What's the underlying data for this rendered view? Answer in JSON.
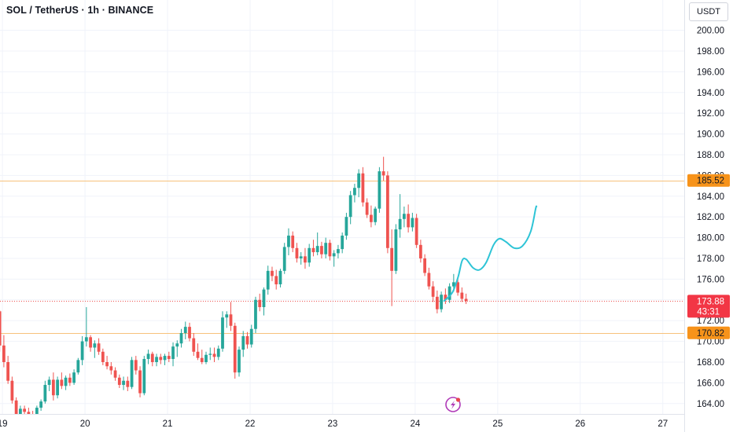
{
  "header": {
    "symbol_title": "SOL / TetherUS · 1h · BINANCE",
    "currency": "USDT"
  },
  "colors": {
    "up": "#26a69a",
    "down": "#ef5350",
    "projection": "#2ec4d6",
    "level_line": "#f7c27b",
    "level_label_bg": "#f7931a",
    "price_label_bg": "#f23645",
    "grid": "#f0f3fa"
  },
  "chart_data": {
    "type": "candlestick",
    "x_ticks": [
      {
        "label": "19",
        "day": 19
      },
      {
        "label": "20",
        "day": 20
      },
      {
        "label": "21",
        "day": 21
      },
      {
        "label": "22",
        "day": 22
      },
      {
        "label": "23",
        "day": 23
      },
      {
        "label": "24",
        "day": 24
      },
      {
        "label": "25",
        "day": 25
      },
      {
        "label": "26",
        "day": 26
      },
      {
        "label": "27",
        "day": 27
      }
    ],
    "y_ticks": [
      "164.00",
      "166.00",
      "168.00",
      "170.00",
      "172.00",
      "174.00",
      "176.00",
      "178.00",
      "180.00",
      "182.00",
      "184.00",
      "186.00",
      "188.00",
      "190.00",
      "192.00",
      "194.00",
      "196.00",
      "198.00",
      "200.00"
    ],
    "ylim": [
      163,
      200.8
    ],
    "xlim_days": [
      18.97,
      27.26
    ],
    "levels": [
      {
        "label": "185.52",
        "value": 185.52
      },
      {
        "label": "170.82",
        "value": 170.82
      }
    ],
    "current_price": {
      "label": "173.88",
      "value": 173.88,
      "countdown": "43:31"
    },
    "candle_spacing_hours": 1.2,
    "candles": [
      [
        174.6,
        174.6,
        172.5,
        172.9
      ],
      [
        172.9,
        173.0,
        169.0,
        169.6
      ],
      [
        169.6,
        170.6,
        167.5,
        168.0
      ],
      [
        168.0,
        168.6,
        165.9,
        166.2
      ],
      [
        166.2,
        166.6,
        164.0,
        164.3
      ],
      [
        164.3,
        164.6,
        162.6,
        163.0
      ],
      [
        163.0,
        163.8,
        162.5,
        163.5
      ],
      [
        163.5,
        163.8,
        162.8,
        163.2
      ],
      [
        163.2,
        163.6,
        162.5,
        163.0
      ],
      [
        163.0,
        163.3,
        162.4,
        162.7
      ],
      [
        162.7,
        163.8,
        162.5,
        163.6
      ],
      [
        163.6,
        164.4,
        163.3,
        164.2
      ],
      [
        164.2,
        166.2,
        164.0,
        165.8
      ],
      [
        165.8,
        166.6,
        165.2,
        166.3
      ],
      [
        166.3,
        167.0,
        164.3,
        164.8
      ],
      [
        164.8,
        166.6,
        164.5,
        166.3
      ],
      [
        166.3,
        167.0,
        165.4,
        165.7
      ],
      [
        165.7,
        166.7,
        165.3,
        166.5
      ],
      [
        166.5,
        166.9,
        165.7,
        166.0
      ],
      [
        166.0,
        167.3,
        165.8,
        167.0
      ],
      [
        167.0,
        168.4,
        166.8,
        168.2
      ],
      [
        168.2,
        170.5,
        167.7,
        170.0
      ],
      [
        170.0,
        173.3,
        169.5,
        170.4
      ],
      [
        170.4,
        170.6,
        169.0,
        169.4
      ],
      [
        169.4,
        170.1,
        168.4,
        169.8
      ],
      [
        169.8,
        170.3,
        168.7,
        169.0
      ],
      [
        169.0,
        169.3,
        167.7,
        168.0
      ],
      [
        168.0,
        168.6,
        167.3,
        167.6
      ],
      [
        167.6,
        168.0,
        166.8,
        167.2
      ],
      [
        167.2,
        167.5,
        166.2,
        166.5
      ],
      [
        166.5,
        166.8,
        165.5,
        165.8
      ],
      [
        165.8,
        166.6,
        165.3,
        166.2
      ],
      [
        166.2,
        166.6,
        165.2,
        165.6
      ],
      [
        165.6,
        168.5,
        165.4,
        168.2
      ],
      [
        168.2,
        168.6,
        166.8,
        167.2
      ],
      [
        167.2,
        167.6,
        164.6,
        165.0
      ],
      [
        165.0,
        168.6,
        164.8,
        168.3
      ],
      [
        168.3,
        169.2,
        167.8,
        168.8
      ],
      [
        168.8,
        169.0,
        167.6,
        168.0
      ],
      [
        168.0,
        168.8,
        167.6,
        168.5
      ],
      [
        168.5,
        168.8,
        167.8,
        168.2
      ],
      [
        168.2,
        168.8,
        167.7,
        168.6
      ],
      [
        168.6,
        169.0,
        168.0,
        168.3
      ],
      [
        168.3,
        169.9,
        167.6,
        169.5
      ],
      [
        169.5,
        170.1,
        168.5,
        169.8
      ],
      [
        169.8,
        171.2,
        169.4,
        170.8
      ],
      [
        170.8,
        171.9,
        170.2,
        171.4
      ],
      [
        171.4,
        171.8,
        170.0,
        170.3
      ],
      [
        170.3,
        170.8,
        168.6,
        169.0
      ],
      [
        169.0,
        169.8,
        168.2,
        168.4
      ],
      [
        168.4,
        169.2,
        167.8,
        168.0
      ],
      [
        168.0,
        169.0,
        167.8,
        168.7
      ],
      [
        168.7,
        169.4,
        168.2,
        168.8
      ],
      [
        168.8,
        169.4,
        168.0,
        168.5
      ],
      [
        168.5,
        169.6,
        168.2,
        169.3
      ],
      [
        169.3,
        172.9,
        169.0,
        172.3
      ],
      [
        172.3,
        172.9,
        171.3,
        172.6
      ],
      [
        172.6,
        173.8,
        171.0,
        171.5
      ],
      [
        171.5,
        171.8,
        166.4,
        167.0
      ],
      [
        167.0,
        169.5,
        166.6,
        169.2
      ],
      [
        169.2,
        171.0,
        168.5,
        170.5
      ],
      [
        170.5,
        170.9,
        169.3,
        169.7
      ],
      [
        169.7,
        171.6,
        169.4,
        171.2
      ],
      [
        171.2,
        174.3,
        170.8,
        174.0
      ],
      [
        174.0,
        174.6,
        172.9,
        173.3
      ],
      [
        173.3,
        175.2,
        172.5,
        175.0
      ],
      [
        175.0,
        177.3,
        174.5,
        176.8
      ],
      [
        176.8,
        177.2,
        175.8,
        176.3
      ],
      [
        176.3,
        176.9,
        175.0,
        175.5
      ],
      [
        175.5,
        177.0,
        175.2,
        176.8
      ],
      [
        176.8,
        179.5,
        176.5,
        179.1
      ],
      [
        179.1,
        180.9,
        178.3,
        180.2
      ],
      [
        180.2,
        180.6,
        178.6,
        179.0
      ],
      [
        179.0,
        179.5,
        177.6,
        178.0
      ],
      [
        178.0,
        178.6,
        177.4,
        178.2
      ],
      [
        178.2,
        179.0,
        177.0,
        177.6
      ],
      [
        177.6,
        179.4,
        177.2,
        179.0
      ],
      [
        179.0,
        179.8,
        178.2,
        178.6
      ],
      [
        178.6,
        180.5,
        178.3,
        179.2
      ],
      [
        179.2,
        179.6,
        178.0,
        178.4
      ],
      [
        178.4,
        180.0,
        178.0,
        179.5
      ],
      [
        179.5,
        179.8,
        177.8,
        178.2
      ],
      [
        178.2,
        178.8,
        177.2,
        178.5
      ],
      [
        178.5,
        179.3,
        178.0,
        178.9
      ],
      [
        178.9,
        180.5,
        178.5,
        180.2
      ],
      [
        180.2,
        182.4,
        179.8,
        182.0
      ],
      [
        182.0,
        184.5,
        181.3,
        184.1
      ],
      [
        184.1,
        185.2,
        183.4,
        184.8
      ],
      [
        184.8,
        186.6,
        183.9,
        186.2
      ],
      [
        186.2,
        186.8,
        183.0,
        183.4
      ],
      [
        183.4,
        183.8,
        181.9,
        182.2
      ],
      [
        182.2,
        183.1,
        181.0,
        181.5
      ],
      [
        181.5,
        183.0,
        181.2,
        182.8
      ],
      [
        182.8,
        186.8,
        182.4,
        186.4
      ],
      [
        186.4,
        187.8,
        185.5,
        186.0
      ],
      [
        186.0,
        186.4,
        178.5,
        179.0
      ],
      [
        179.0,
        180.8,
        173.4,
        176.8
      ],
      [
        176.8,
        181.3,
        176.5,
        180.8
      ],
      [
        180.8,
        184.2,
        180.0,
        181.8
      ],
      [
        181.8,
        183.0,
        181.0,
        182.3
      ],
      [
        182.3,
        183.2,
        180.5,
        181.0
      ],
      [
        181.0,
        182.4,
        180.6,
        181.9
      ],
      [
        181.9,
        182.3,
        179.0,
        179.3
      ],
      [
        179.3,
        179.8,
        177.6,
        178.0
      ],
      [
        178.0,
        178.4,
        176.3,
        176.6
      ],
      [
        176.6,
        177.1,
        175.0,
        175.3
      ],
      [
        175.3,
        175.8,
        173.8,
        174.3
      ],
      [
        174.3,
        174.9,
        172.7,
        173.1
      ],
      [
        173.1,
        174.8,
        172.8,
        174.5
      ],
      [
        174.5,
        175.1,
        173.6,
        174.0
      ],
      [
        174.0,
        175.6,
        173.7,
        175.3
      ],
      [
        175.3,
        176.5,
        174.8,
        175.7
      ],
      [
        175.7,
        176.1,
        174.4,
        174.7
      ],
      [
        174.7,
        175.2,
        173.8,
        174.1
      ],
      [
        174.1,
        174.6,
        173.6,
        173.9
      ]
    ],
    "projection_curve": [
      [
        24.35,
        173.9
      ],
      [
        24.45,
        174.7
      ],
      [
        24.52,
        176.2
      ],
      [
        24.57,
        177.8
      ],
      [
        24.62,
        177.9
      ],
      [
        24.7,
        177.1
      ],
      [
        24.78,
        176.9
      ],
      [
        24.86,
        177.6
      ],
      [
        24.95,
        179.3
      ],
      [
        25.02,
        179.9
      ],
      [
        25.1,
        179.6
      ],
      [
        25.2,
        179.0
      ],
      [
        25.3,
        179.2
      ],
      [
        25.4,
        180.6
      ],
      [
        25.46,
        182.8
      ],
      [
        25.47,
        183.0
      ]
    ],
    "watermark_icon": "lightning-bolt-icon"
  }
}
